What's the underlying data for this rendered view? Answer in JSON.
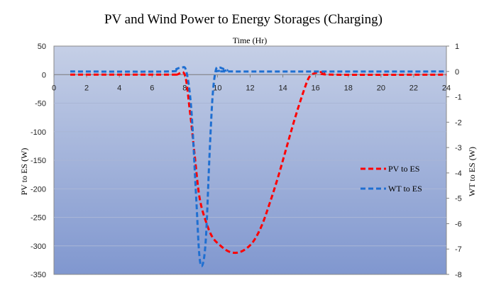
{
  "chart_data": {
    "type": "line",
    "title": "PV and Wind Power to Energy Storages (Charging)",
    "xlabel": "Time (Hr)",
    "ylabel": "PV to ES (W)",
    "y2label": "WT to ES (W)",
    "xlim": [
      0,
      24
    ],
    "ylim": [
      -350,
      50
    ],
    "y2lim": [
      -8,
      1
    ],
    "x_ticks": [
      0,
      2,
      4,
      6,
      8,
      10,
      12,
      14,
      16,
      18,
      20,
      22,
      24
    ],
    "y_ticks": [
      50,
      0,
      -50,
      -100,
      -150,
      -200,
      -250,
      -300,
      -350
    ],
    "y2_ticks": [
      1,
      0,
      -1,
      -2,
      -3,
      -4,
      -5,
      -6,
      -7,
      -8
    ],
    "grid": true,
    "legend": "right",
    "series": [
      {
        "name": "PV to ES",
        "axis": "left",
        "color": "#ff0000",
        "x": [
          1,
          7,
          7.5,
          8,
          8.3,
          8.6,
          8.9,
          9.3,
          9.7,
          10.2,
          10.7,
          11.2,
          11.7,
          12.2,
          12.7,
          13.2,
          13.7,
          14.2,
          14.7,
          15.2,
          15.6,
          16,
          16.5,
          17,
          24
        ],
        "values": [
          0,
          0,
          0,
          0,
          -60,
          -140,
          -215,
          -258,
          -285,
          -300,
          -310,
          -312,
          -306,
          -292,
          -265,
          -225,
          -180,
          -130,
          -80,
          -35,
          -5,
          3,
          4,
          0,
          0
        ]
      },
      {
        "name": "WT to ES",
        "axis": "right",
        "color": "#1f6fd1",
        "x": [
          1,
          7,
          7.5,
          7.8,
          8.1,
          8.4,
          8.7,
          8.9,
          9.1,
          9.3,
          9.5,
          9.7,
          9.9,
          10.1,
          10.3,
          10.6,
          11,
          24
        ],
        "values": [
          0,
          0,
          0.1,
          0.15,
          0,
          -1.5,
          -5,
          -7.3,
          -7.6,
          -6.5,
          -3.5,
          -1,
          0.05,
          0.15,
          0.12,
          0.05,
          0,
          0
        ]
      }
    ]
  }
}
